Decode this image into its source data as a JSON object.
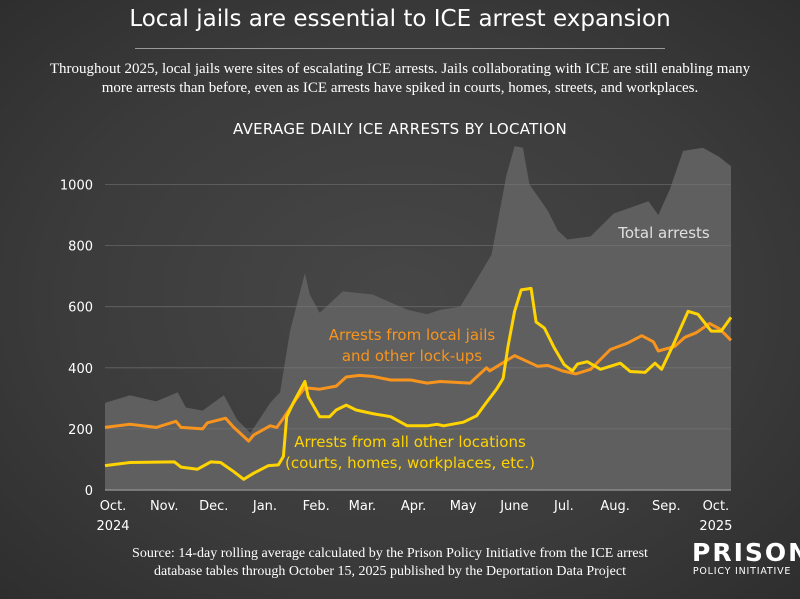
{
  "title": "Local jails are essential to ICE arrest expansion",
  "subtitle": "Throughout 2025, local jails were sites of escalating ICE arrests. Jails collaborating with ICE are still enabling many more arrests than before, even as ICE arrests have spiked in courts, homes, streets, and workplaces.",
  "source": "Source: 14-day rolling average calculated by the Prison Policy Initiative from the ICE arrest database tables through October 15, 2025 published by the Deportation Data Project",
  "logo": {
    "line1": "PRISON",
    "line2": "POLICY INITIATIVE"
  },
  "chart_data": {
    "type": "line",
    "title": "AVERAGE DAILY ICE ARRESTS BY LOCATION",
    "xlabel": "",
    "ylabel": "",
    "xlim": [
      "2024-10-01",
      "2025-10-15"
    ],
    "ylim": [
      0,
      1150
    ],
    "yticks": [
      0,
      200,
      400,
      600,
      800,
      1000
    ],
    "xticks": [
      {
        "date": "2024-10-01",
        "label": "Oct.",
        "year": "2024"
      },
      {
        "date": "2024-11-01",
        "label": "Nov."
      },
      {
        "date": "2024-12-01",
        "label": "Dec."
      },
      {
        "date": "2025-01-01",
        "label": "Jan."
      },
      {
        "date": "2025-02-01",
        "label": "Feb."
      },
      {
        "date": "2025-03-01",
        "label": "Mar."
      },
      {
        "date": "2025-04-01",
        "label": "Apr."
      },
      {
        "date": "2025-05-01",
        "label": "May"
      },
      {
        "date": "2025-06-01",
        "label": "June"
      },
      {
        "date": "2025-07-01",
        "label": "Jul."
      },
      {
        "date": "2025-08-01",
        "label": "Aug."
      },
      {
        "date": "2025-09-01",
        "label": "Sep."
      },
      {
        "date": "2025-10-01",
        "label": "Oct.",
        "year": "2025"
      }
    ],
    "grid": true,
    "series": [
      {
        "name": "Total arrests",
        "style": "area",
        "color": "#5f5f5f",
        "label_lines": [
          "Total arrests"
        ],
        "label_color": "#e0e0e0",
        "points": [
          [
            "2024-10-01",
            285
          ],
          [
            "2024-10-16",
            310
          ],
          [
            "2024-11-01",
            290
          ],
          [
            "2024-11-14",
            320
          ],
          [
            "2024-11-19",
            270
          ],
          [
            "2024-11-29",
            260
          ],
          [
            "2024-12-12",
            310
          ],
          [
            "2024-12-20",
            230
          ],
          [
            "2024-12-28",
            187
          ],
          [
            "2025-01-09",
            285
          ],
          [
            "2025-01-15",
            320
          ],
          [
            "2025-01-21",
            520
          ],
          [
            "2025-01-30",
            710
          ],
          [
            "2025-02-02",
            640
          ],
          [
            "2025-02-08",
            580
          ],
          [
            "2025-02-22",
            650
          ],
          [
            "2025-03-12",
            640
          ],
          [
            "2025-04-02",
            590
          ],
          [
            "2025-04-14",
            575
          ],
          [
            "2025-04-22",
            590
          ],
          [
            "2025-05-04",
            600
          ],
          [
            "2025-05-12",
            670
          ],
          [
            "2025-05-23",
            770
          ],
          [
            "2025-06-01",
            1030
          ],
          [
            "2025-06-06",
            1125
          ],
          [
            "2025-06-11",
            1120
          ],
          [
            "2025-06-15",
            1000
          ],
          [
            "2025-06-26",
            915
          ],
          [
            "2025-07-02",
            850
          ],
          [
            "2025-07-08",
            820
          ],
          [
            "2025-07-22",
            830
          ],
          [
            "2025-08-05",
            905
          ],
          [
            "2025-08-26",
            945
          ],
          [
            "2025-09-01",
            900
          ],
          [
            "2025-09-08",
            985
          ],
          [
            "2025-09-16",
            1110
          ],
          [
            "2025-09-28",
            1120
          ],
          [
            "2025-10-08",
            1090
          ],
          [
            "2025-10-15",
            1060
          ]
        ]
      },
      {
        "name": "Arrests from local jails and other lock-ups",
        "style": "line",
        "color": "#f7941d",
        "label_lines": [
          "Arrests from local jails",
          "and other lock-ups"
        ],
        "points": [
          [
            "2024-10-01",
            205
          ],
          [
            "2024-10-16",
            215
          ],
          [
            "2024-11-01",
            205
          ],
          [
            "2024-11-13",
            225
          ],
          [
            "2024-11-16",
            205
          ],
          [
            "2024-11-29",
            200
          ],
          [
            "2024-12-02",
            220
          ],
          [
            "2024-12-13",
            235
          ],
          [
            "2024-12-18",
            205
          ],
          [
            "2024-12-27",
            160
          ],
          [
            "2024-12-30",
            180
          ],
          [
            "2025-01-09",
            210
          ],
          [
            "2025-01-13",
            205
          ],
          [
            "2025-01-17",
            235
          ],
          [
            "2025-01-25",
            300
          ],
          [
            "2025-01-30",
            335
          ],
          [
            "2025-02-08",
            330
          ],
          [
            "2025-02-18",
            340
          ],
          [
            "2025-02-24",
            370
          ],
          [
            "2025-03-04",
            375
          ],
          [
            "2025-03-12",
            372
          ],
          [
            "2025-03-23",
            360
          ],
          [
            "2025-04-04",
            360
          ],
          [
            "2025-04-14",
            350
          ],
          [
            "2025-04-22",
            355
          ],
          [
            "2025-05-10",
            350
          ],
          [
            "2025-05-20",
            400
          ],
          [
            "2025-05-22",
            390
          ],
          [
            "2025-06-06",
            440
          ],
          [
            "2025-06-20",
            405
          ],
          [
            "2025-06-26",
            408
          ],
          [
            "2025-07-05",
            390
          ],
          [
            "2025-07-13",
            380
          ],
          [
            "2025-07-22",
            395
          ],
          [
            "2025-08-03",
            460
          ],
          [
            "2025-08-13",
            480
          ],
          [
            "2025-08-22",
            505
          ],
          [
            "2025-08-29",
            485
          ],
          [
            "2025-09-01",
            455
          ],
          [
            "2025-09-11",
            470
          ],
          [
            "2025-09-17",
            500
          ],
          [
            "2025-09-24",
            515
          ],
          [
            "2025-10-02",
            545
          ],
          [
            "2025-10-08",
            528
          ],
          [
            "2025-10-15",
            490
          ]
        ]
      },
      {
        "name": "Arrests from all other locations (courts, homes, workplaces, etc.)",
        "style": "line",
        "color": "#ffd400",
        "label_lines": [
          "Arrests from all other locations",
          "(courts, homes, workplaces, etc.)"
        ],
        "points": [
          [
            "2024-10-01",
            80
          ],
          [
            "2024-10-16",
            90
          ],
          [
            "2024-11-12",
            92
          ],
          [
            "2024-11-16",
            75
          ],
          [
            "2024-11-26",
            68
          ],
          [
            "2024-12-04",
            92
          ],
          [
            "2024-12-10",
            90
          ],
          [
            "2024-12-18",
            60
          ],
          [
            "2024-12-24",
            35
          ],
          [
            "2024-12-30",
            55
          ],
          [
            "2025-01-08",
            80
          ],
          [
            "2025-01-14",
            82
          ],
          [
            "2025-01-17",
            110
          ],
          [
            "2025-01-19",
            240
          ],
          [
            "2025-01-23",
            285
          ],
          [
            "2025-01-30",
            355
          ],
          [
            "2025-02-01",
            305
          ],
          [
            "2025-02-08",
            240
          ],
          [
            "2025-02-14",
            240
          ],
          [
            "2025-02-18",
            262
          ],
          [
            "2025-02-24",
            278
          ],
          [
            "2025-03-02",
            262
          ],
          [
            "2025-03-12",
            250
          ],
          [
            "2025-03-23",
            240
          ],
          [
            "2025-04-02",
            210
          ],
          [
            "2025-04-14",
            210
          ],
          [
            "2025-04-20",
            215
          ],
          [
            "2025-04-24",
            210
          ],
          [
            "2025-05-06",
            222
          ],
          [
            "2025-05-14",
            243
          ],
          [
            "2025-05-19",
            280
          ],
          [
            "2025-05-26",
            330
          ],
          [
            "2025-05-30",
            365
          ],
          [
            "2025-06-02",
            470
          ],
          [
            "2025-06-06",
            585
          ],
          [
            "2025-06-10",
            655
          ],
          [
            "2025-06-16",
            660
          ],
          [
            "2025-06-19",
            550
          ],
          [
            "2025-06-24",
            530
          ],
          [
            "2025-06-30",
            465
          ],
          [
            "2025-07-06",
            410
          ],
          [
            "2025-07-11",
            390
          ],
          [
            "2025-07-14",
            412
          ],
          [
            "2025-07-20",
            420
          ],
          [
            "2025-07-28",
            395
          ],
          [
            "2025-08-09",
            415
          ],
          [
            "2025-08-15",
            388
          ],
          [
            "2025-08-24",
            385
          ],
          [
            "2025-08-30",
            415
          ],
          [
            "2025-09-03",
            395
          ],
          [
            "2025-09-10",
            475
          ],
          [
            "2025-09-19",
            585
          ],
          [
            "2025-09-25",
            575
          ],
          [
            "2025-10-03",
            520
          ],
          [
            "2025-10-09",
            520
          ],
          [
            "2025-10-11",
            535
          ],
          [
            "2025-10-15",
            565
          ]
        ]
      }
    ]
  }
}
